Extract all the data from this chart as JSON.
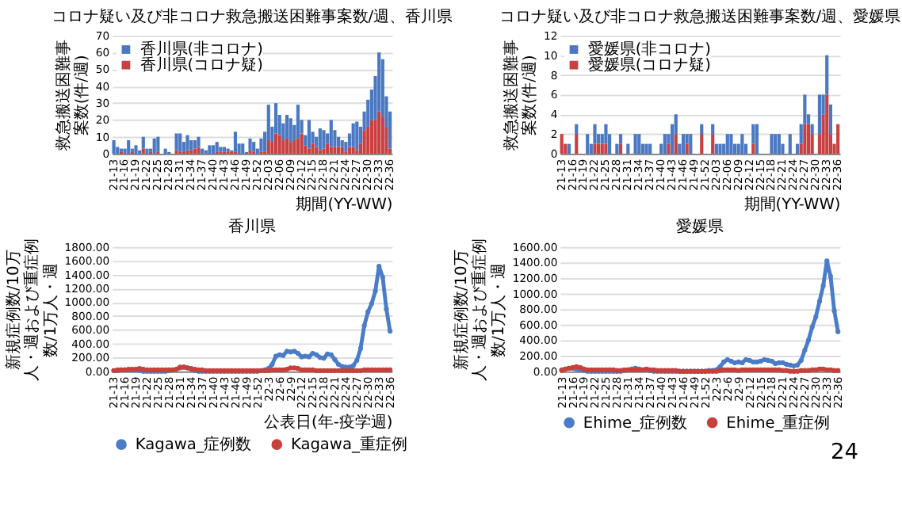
{
  "chart_data": [
    {
      "type": "bar",
      "stacked": true,
      "title": "コロナ疑い及び非コロナ救急搬送困難事案数/週、香川県",
      "ylabel": "救急搬送困難事案数(件/週)",
      "xlabel": "期間(YY-WW)",
      "legend": "top left",
      "grid": "y",
      "ylim": [
        0,
        70
      ],
      "yticks": [
        0,
        10,
        20,
        30,
        40,
        50,
        60,
        70
      ],
      "categories": [
        "21-13",
        null,
        null,
        "21-16",
        null,
        null,
        "21-19",
        null,
        null,
        "21-22",
        null,
        null,
        "21-25",
        null,
        null,
        "21-28",
        null,
        null,
        "21-31",
        null,
        null,
        "21-34",
        null,
        null,
        "21-37",
        null,
        null,
        "21-40",
        null,
        null,
        "21-43",
        null,
        null,
        "21-46",
        null,
        null,
        "21-49",
        null,
        null,
        "21-52",
        null,
        null,
        "22-03",
        null,
        null,
        "22-06",
        null,
        null,
        "22-09",
        null,
        null,
        "22-12",
        null,
        null,
        "22-15",
        null,
        null,
        "22-18",
        null,
        null,
        "22-21",
        null,
        null,
        "22-24",
        null,
        null,
        "22-27",
        null,
        null,
        "22-30",
        null,
        null,
        "22-33",
        null,
        null,
        "22-36"
      ],
      "series": [
        {
          "name": "香川県(コロナ疑)",
          "color": "#c94040",
          "values": [
            0,
            0,
            1,
            0,
            0,
            1,
            0,
            0,
            3,
            0,
            1,
            0,
            1,
            0,
            0,
            0,
            0,
            2,
            1,
            1,
            2,
            2,
            3,
            4,
            0,
            0,
            0,
            0,
            1,
            1,
            1,
            1,
            1,
            1,
            0,
            0,
            0,
            2,
            1,
            0,
            1,
            1,
            8,
            7,
            12,
            11,
            8,
            9,
            7,
            8,
            9,
            12,
            5,
            3,
            6,
            4,
            2,
            3,
            6,
            4,
            4,
            4,
            4,
            1,
            4,
            4,
            2,
            6,
            14,
            16,
            20,
            20,
            25,
            22,
            16,
            3
          ]
        },
        {
          "name": "香川県(非コロナ)",
          "color": "#4a78c2",
          "values": [
            8,
            4,
            2,
            3,
            8,
            2,
            5,
            2,
            7,
            3,
            2,
            9,
            9,
            0,
            3,
            1,
            0,
            10,
            11,
            6,
            9,
            6,
            5,
            6,
            3,
            2,
            5,
            5,
            6,
            3,
            3,
            2,
            1,
            12,
            6,
            6,
            1,
            7,
            6,
            3,
            8,
            12,
            21,
            9,
            18,
            12,
            10,
            14,
            14,
            9,
            20,
            8,
            6,
            17,
            7,
            6,
            13,
            11,
            6,
            16,
            10,
            6,
            4,
            6,
            8,
            14,
            17,
            10,
            11,
            16,
            18,
            26,
            35,
            34,
            18,
            22
          ]
        }
      ]
    },
    {
      "type": "bar",
      "stacked": true,
      "title": "コロナ疑い及び非コロナ救急搬送困難事案数/週、愛媛県",
      "ylabel": "救急搬送困難事案数(件/週)",
      "xlabel": "期間(YY-WW)",
      "legend": "top left",
      "grid": "y",
      "ylim": [
        0,
        12
      ],
      "yticks": [
        0,
        2,
        4,
        6,
        8,
        10,
        12
      ],
      "categories": [
        "21-13",
        null,
        null,
        "21-16",
        null,
        null,
        "21-19",
        null,
        null,
        "21-22",
        null,
        null,
        "21-25",
        null,
        null,
        "21-28",
        null,
        null,
        "21-31",
        null,
        null,
        "21-34",
        null,
        null,
        "21-37",
        null,
        null,
        "21-40",
        null,
        null,
        "21-43",
        null,
        null,
        "21-46",
        null,
        null,
        "21-49",
        null,
        null,
        "21-52",
        null,
        null,
        "22-03",
        null,
        null,
        "22-06",
        null,
        null,
        "22-09",
        null,
        null,
        "22-12",
        null,
        null,
        "22-15",
        null,
        null,
        "22-18",
        null,
        null,
        "22-21",
        null,
        null,
        "22-24",
        null,
        null,
        "22-27",
        null,
        null,
        "22-30",
        null,
        null,
        "22-33",
        null,
        null,
        "22-36"
      ],
      "series": [
        {
          "name": "愛媛県(コロナ疑)",
          "color": "#c94040",
          "values": [
            2,
            1,
            0,
            0,
            2,
            0,
            0,
            0,
            0,
            1,
            1,
            1,
            1,
            0,
            0,
            0,
            1,
            0,
            0,
            0,
            0,
            0,
            0,
            0,
            0,
            0,
            0,
            0,
            0,
            1,
            0,
            2,
            0,
            0,
            1,
            0,
            0,
            0,
            2,
            0,
            0,
            2,
            0,
            0,
            0,
            0,
            0,
            0,
            0,
            0,
            0,
            0,
            1,
            0,
            0,
            0,
            0,
            0,
            0,
            0,
            0,
            0,
            0,
            0,
            0,
            1,
            3,
            3,
            2,
            0,
            2,
            4,
            6,
            2,
            1,
            3
          ]
        },
        {
          "name": "愛媛県(非コロナ)",
          "color": "#4a78c2",
          "values": [
            0,
            0,
            1,
            0,
            1,
            0,
            0,
            2,
            1,
            2,
            1,
            1,
            2,
            2,
            0,
            1,
            1,
            0,
            1,
            0,
            2,
            2,
            1,
            1,
            1,
            0,
            0,
            1,
            2,
            1,
            3,
            2,
            1,
            2,
            1,
            2,
            0,
            0,
            1,
            0,
            0,
            1,
            1,
            1,
            1,
            2,
            2,
            1,
            1,
            2,
            1,
            0,
            2,
            3,
            0,
            0,
            0,
            2,
            2,
            2,
            1,
            0,
            2,
            0,
            1,
            2,
            3,
            1,
            1,
            0,
            4,
            2,
            4,
            3,
            0,
            0
          ]
        }
      ]
    },
    {
      "type": "line",
      "title": "香川県",
      "ylabel": "新規症例数/10万人・週および重症例数/1万人・週",
      "xlabel": "公表日(年-疫学週)",
      "legend": "bottom",
      "grid": "y",
      "marker": "circle",
      "line_style": "solid",
      "ylim": [
        0,
        1800
      ],
      "yticks": [
        {
          "value": 0,
          "label": "0.00"
        },
        {
          "value": 200,
          "label": "200.00"
        },
        {
          "value": 400,
          "label": "400.00"
        },
        {
          "value": 600,
          "label": "600.00"
        },
        {
          "value": 800,
          "label": "800.00"
        },
        {
          "value": 1000,
          "label": "1000.00"
        },
        {
          "value": 1200,
          "label": "1200.00"
        },
        {
          "value": 1400,
          "label": "1400.00"
        },
        {
          "value": 1600,
          "label": "1600.00"
        },
        {
          "value": 1800,
          "label": "1800.00"
        }
      ],
      "categories": [
        "21-13",
        null,
        null,
        "21-16",
        null,
        null,
        "21-19",
        null,
        null,
        "21-22",
        null,
        null,
        "21-25",
        null,
        null,
        "21-28",
        null,
        null,
        "21-31",
        null,
        null,
        "21-34",
        null,
        null,
        "21-37",
        null,
        null,
        "21-40",
        null,
        null,
        "21-43",
        null,
        null,
        "21-46",
        null,
        null,
        "21-49",
        null,
        null,
        "21-52",
        null,
        null,
        "22-3",
        null,
        null,
        "22-6",
        null,
        null,
        "22-9",
        null,
        null,
        "22-12",
        null,
        null,
        "22-15",
        null,
        null,
        "22-18",
        null,
        null,
        "22-21",
        null,
        null,
        "22-24",
        null,
        null,
        "22-27",
        null,
        null,
        "22-30",
        null,
        null,
        "22-33",
        null,
        null,
        "22-36"
      ],
      "series": [
        {
          "name": "Kagawa_症例数",
          "color": "#4a7cc7",
          "values": [
            10,
            10,
            20,
            20,
            20,
            20,
            20,
            10,
            0,
            0,
            0,
            0,
            0,
            0,
            0,
            10,
            20,
            30,
            50,
            60,
            50,
            30,
            10,
            0,
            0,
            0,
            0,
            0,
            0,
            0,
            0,
            0,
            0,
            0,
            0,
            0,
            0,
            0,
            0,
            0,
            10,
            20,
            40,
            100,
            220,
            240,
            230,
            290,
            280,
            290,
            260,
            210,
            220,
            210,
            260,
            240,
            200,
            190,
            250,
            240,
            170,
            100,
            70,
            60,
            60,
            80,
            160,
            330,
            660,
            860,
            980,
            1160,
            1520,
            1360,
            900,
            580
          ]
        },
        {
          "name": "Kagawa_重症例",
          "color": "#c8403a",
          "values": [
            10,
            20,
            20,
            20,
            30,
            30,
            30,
            40,
            30,
            20,
            20,
            20,
            20,
            20,
            20,
            20,
            20,
            30,
            60,
            60,
            50,
            40,
            30,
            20,
            20,
            10,
            10,
            10,
            10,
            10,
            10,
            10,
            10,
            10,
            10,
            10,
            10,
            10,
            10,
            10,
            10,
            10,
            10,
            20,
            20,
            20,
            20,
            30,
            50,
            50,
            40,
            20,
            20,
            20,
            20,
            10,
            10,
            10,
            10,
            10,
            10,
            10,
            10,
            10,
            10,
            10,
            10,
            10,
            20,
            20,
            20,
            20,
            20,
            20,
            20,
            20
          ]
        }
      ]
    },
    {
      "type": "line",
      "title": "愛媛県",
      "ylabel": "新規症例数/10万人・週および重症例数/1万人・週",
      "legend": "bottom",
      "grid": "y",
      "marker": "circle",
      "line_style": "solid",
      "ylim": [
        0,
        1600
      ],
      "annotations": [
        "24"
      ],
      "yticks": [
        {
          "value": 0,
          "label": "0.00"
        },
        {
          "value": 200,
          "label": "200.00"
        },
        {
          "value": 400,
          "label": "400.00"
        },
        {
          "value": 600,
          "label": "600.00"
        },
        {
          "value": 800,
          "label": "800.00"
        },
        {
          "value": 1000,
          "label": "1000.00"
        },
        {
          "value": 1200,
          "label": "1200.00"
        },
        {
          "value": 1400,
          "label": "1400.00"
        },
        {
          "value": 1600,
          "label": "1600.00"
        }
      ],
      "categories": [
        "21-13",
        null,
        null,
        "21-16",
        null,
        null,
        "21-19",
        null,
        null,
        "21-22",
        null,
        null,
        "21-25",
        null,
        null,
        "21-28",
        null,
        null,
        "21-31",
        null,
        null,
        "21-34",
        null,
        null,
        "21-37",
        null,
        null,
        "21-40",
        null,
        null,
        "21-43",
        null,
        null,
        "21-46",
        null,
        null,
        "21-49",
        null,
        null,
        "21-52",
        null,
        null,
        "22-3",
        null,
        null,
        "22-6",
        null,
        null,
        "22-9",
        null,
        null,
        "22-12",
        null,
        null,
        "22-15",
        null,
        null,
        "22-18",
        null,
        null,
        "22-21",
        null,
        null,
        "22-24",
        null,
        null,
        "22-27",
        null,
        null,
        "22-30",
        null,
        null,
        "22-33",
        null,
        null,
        "22-36"
      ],
      "series": [
        {
          "name": "Ehime_症例数",
          "color": "#4a7cc7",
          "values": [
            20,
            30,
            40,
            40,
            30,
            20,
            10,
            0,
            0,
            0,
            0,
            0,
            0,
            0,
            0,
            0,
            0,
            10,
            20,
            30,
            40,
            30,
            20,
            20,
            10,
            0,
            0,
            0,
            0,
            0,
            0,
            0,
            0,
            0,
            0,
            0,
            0,
            0,
            0,
            0,
            10,
            10,
            20,
            60,
            120,
            150,
            130,
            110,
            120,
            110,
            150,
            140,
            120,
            120,
            130,
            150,
            140,
            130,
            100,
            110,
            110,
            90,
            80,
            70,
            80,
            140,
            270,
            400,
            570,
            700,
            900,
            1100,
            1420,
            1220,
            780,
            510
          ]
        },
        {
          "name": "Ehime_重症例",
          "color": "#c8403a",
          "values": [
            10,
            30,
            40,
            50,
            60,
            50,
            30,
            20,
            20,
            20,
            20,
            20,
            20,
            20,
            20,
            10,
            10,
            20,
            20,
            20,
            20,
            20,
            20,
            30,
            20,
            20,
            10,
            10,
            10,
            10,
            10,
            10,
            0,
            0,
            0,
            0,
            0,
            0,
            0,
            0,
            0,
            0,
            0,
            10,
            20,
            20,
            20,
            20,
            10,
            20,
            20,
            20,
            20,
            20,
            20,
            20,
            20,
            20,
            20,
            20,
            10,
            10,
            0,
            0,
            0,
            10,
            10,
            10,
            20,
            20,
            30,
            30,
            20,
            20,
            10,
            10
          ]
        }
      ]
    }
  ]
}
